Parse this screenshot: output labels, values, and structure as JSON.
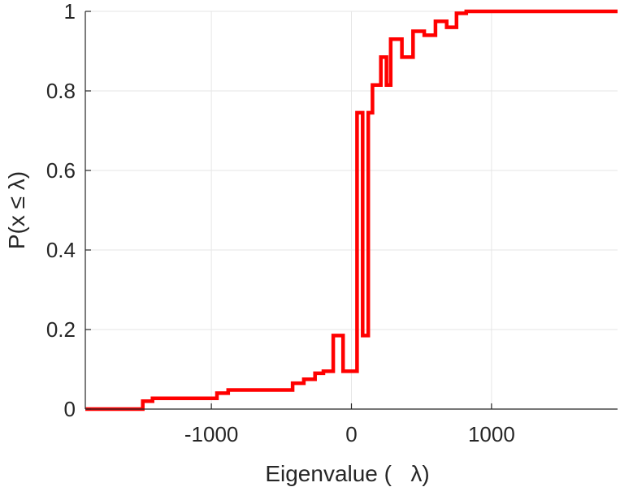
{
  "chart_data": {
    "type": "line",
    "subtype": "empirical-cdf-staircase",
    "title": "",
    "xlabel": "Eigenvalue (   λ)",
    "ylabel": "P(x ≤ λ)",
    "xlim": [
      -1900,
      1900
    ],
    "ylim": [
      0,
      1
    ],
    "xticks": [
      -1000,
      0,
      1000
    ],
    "xtick_labels": [
      "-1000",
      "0",
      "1000"
    ],
    "yticks": [
      0,
      0.2,
      0.4,
      0.6,
      0.8,
      1
    ],
    "ytick_labels": [
      "0",
      "0.2",
      "0.4",
      "0.6",
      "0.8",
      "1"
    ],
    "grid": true,
    "legend": "none",
    "series": [
      {
        "color": "#ff0000",
        "x": [
          -1900,
          -1490,
          -1490,
          -1420,
          -1420,
          -960,
          -960,
          -880,
          -880,
          -420,
          -420,
          -340,
          -340,
          -260,
          -260,
          -200,
          -200,
          -130,
          -130,
          -60,
          -60,
          40,
          40,
          80,
          80,
          120,
          120,
          150,
          150,
          210,
          210,
          250,
          250,
          280,
          280,
          360,
          360,
          440,
          440,
          520,
          520,
          600,
          600,
          680,
          680,
          750,
          750,
          820,
          820,
          1900
        ],
        "y": [
          0,
          0,
          0.02,
          0.02,
          0.027,
          0.027,
          0.04,
          0.04,
          0.048,
          0.048,
          0.065,
          0.065,
          0.075,
          0.075,
          0.09,
          0.09,
          0.095,
          0.095,
          0.185,
          0.185,
          0.095,
          0.095,
          0.745,
          0.745,
          0.185,
          0.185,
          0.745,
          0.745,
          0.815,
          0.815,
          0.885,
          0.885,
          0.815,
          0.815,
          0.93,
          0.93,
          0.885,
          0.885,
          0.95,
          0.95,
          0.94,
          0.94,
          0.975,
          0.975,
          0.96,
          0.96,
          0.995,
          0.995,
          1,
          1
        ]
      }
    ]
  }
}
